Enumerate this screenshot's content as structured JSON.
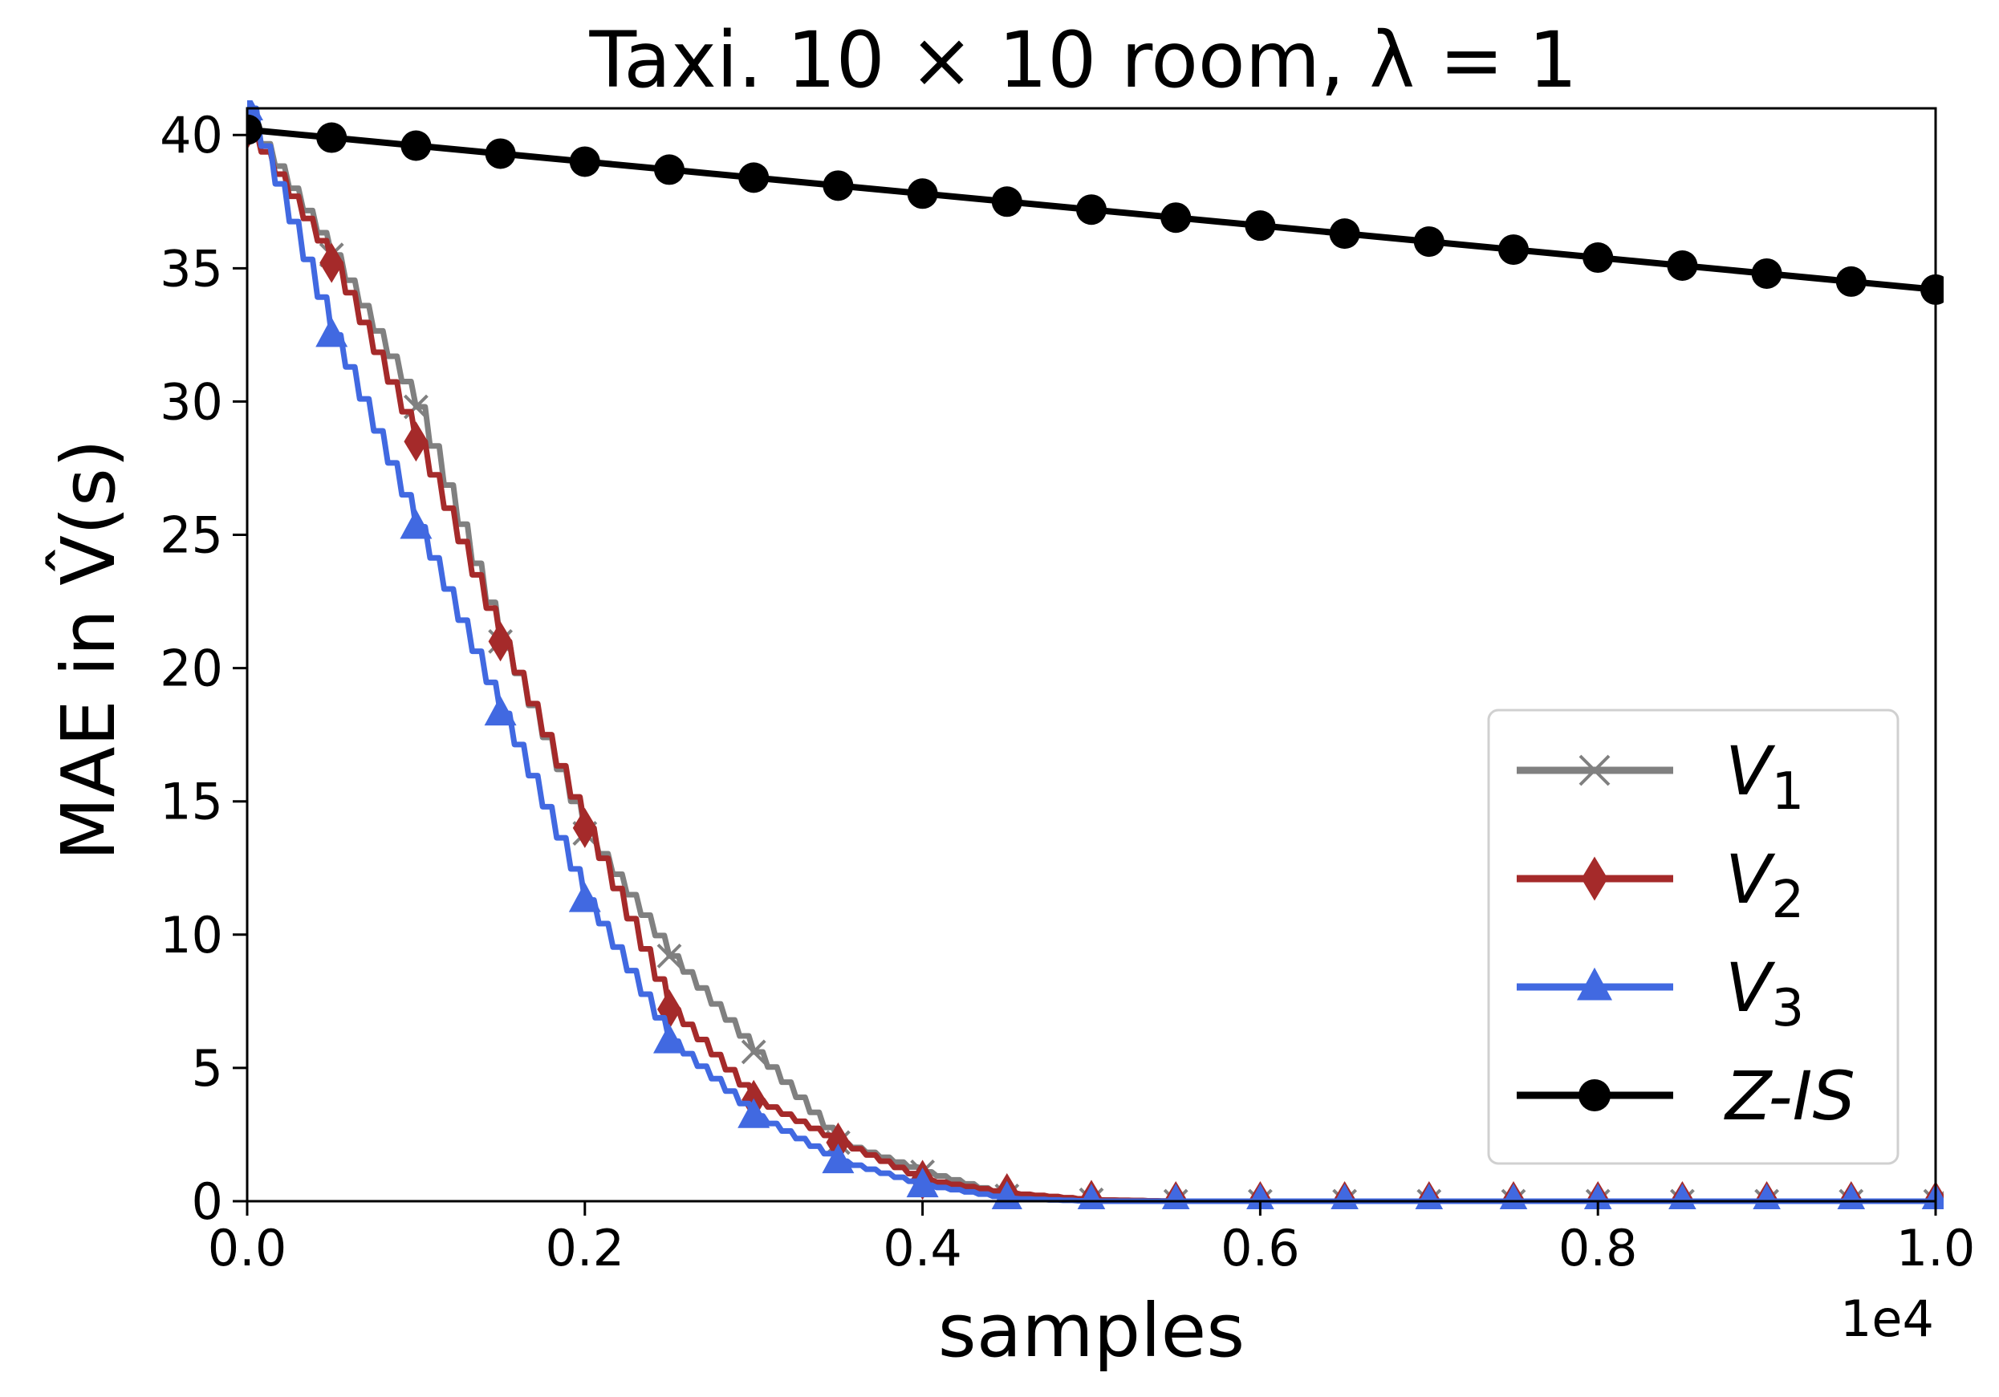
{
  "chart_data": {
    "type": "line",
    "title": "Taxi. 10 × 10 room, λ = 1",
    "xlabel": "samples",
    "ylabel": "MAE in V̂(s)",
    "x_offset_label": "1e4",
    "xlim": [
      0.0,
      1.0
    ],
    "ylim": [
      0,
      41
    ],
    "x_ticks": [
      "0.0",
      "0.2",
      "0.4",
      "0.6",
      "0.8",
      "1.0"
    ],
    "y_ticks": [
      "0",
      "5",
      "10",
      "15",
      "20",
      "25",
      "30",
      "35",
      "40"
    ],
    "legend_position": "lower-right",
    "grid": false,
    "series": [
      {
        "name": "V1",
        "label_main": "V",
        "label_sub": "1",
        "color": "#808080",
        "marker": "x",
        "x": [
          0.0,
          0.05,
          0.1,
          0.15,
          0.2,
          0.25,
          0.3,
          0.35,
          0.4,
          0.45,
          0.5,
          0.55,
          0.6,
          0.65,
          0.7,
          0.75,
          0.8,
          0.85,
          0.9,
          0.95,
          1.0
        ],
        "values": [
          40.5,
          35.5,
          29.8,
          21.0,
          13.8,
          9.2,
          5.6,
          2.2,
          1.1,
          0.2,
          0.05,
          0.0,
          0.0,
          0.0,
          0.0,
          0.0,
          0.0,
          0.0,
          0.0,
          0.0,
          0.0
        ]
      },
      {
        "name": "V2",
        "label_main": "V",
        "label_sub": "2",
        "color": "#a52a2a",
        "marker": "diamond",
        "x": [
          0.0,
          0.05,
          0.1,
          0.15,
          0.2,
          0.25,
          0.3,
          0.35,
          0.4,
          0.45,
          0.5,
          0.55,
          0.6,
          0.65,
          0.7,
          0.75,
          0.8,
          0.85,
          0.9,
          0.95,
          1.0
        ],
        "values": [
          40.2,
          35.2,
          28.5,
          21.0,
          14.0,
          7.2,
          3.8,
          2.2,
          0.8,
          0.3,
          0.05,
          0.0,
          0.0,
          0.0,
          0.0,
          0.0,
          0.0,
          0.0,
          0.0,
          0.0,
          0.0
        ]
      },
      {
        "name": "V3",
        "label_main": "V",
        "label_sub": "3",
        "color": "#4169e1",
        "marker": "triangle",
        "x": [
          0.0,
          0.05,
          0.1,
          0.15,
          0.2,
          0.25,
          0.3,
          0.35,
          0.4,
          0.45,
          0.5,
          0.55,
          0.6,
          0.65,
          0.7,
          0.75,
          0.8,
          0.85,
          0.9,
          0.95,
          1.0
        ],
        "values": [
          41.0,
          32.5,
          25.3,
          18.3,
          11.3,
          6.0,
          3.2,
          1.5,
          0.6,
          0.1,
          0.0,
          0.0,
          0.0,
          0.0,
          0.0,
          0.0,
          0.0,
          0.0,
          0.0,
          0.0,
          0.0
        ]
      },
      {
        "name": "Z-IS",
        "label_main": "Z-IS",
        "label_sub": "",
        "color": "#000000",
        "marker": "circle",
        "x": [
          0.0,
          0.05,
          0.1,
          0.15,
          0.2,
          0.25,
          0.3,
          0.35,
          0.4,
          0.45,
          0.5,
          0.55,
          0.6,
          0.65,
          0.7,
          0.75,
          0.8,
          0.85,
          0.9,
          0.95,
          1.0
        ],
        "values": [
          40.2,
          39.9,
          39.6,
          39.3,
          39.0,
          38.7,
          38.4,
          38.1,
          37.8,
          37.5,
          37.2,
          36.9,
          36.6,
          36.3,
          36.0,
          35.7,
          35.4,
          35.1,
          34.8,
          34.5,
          34.2
        ]
      }
    ]
  }
}
